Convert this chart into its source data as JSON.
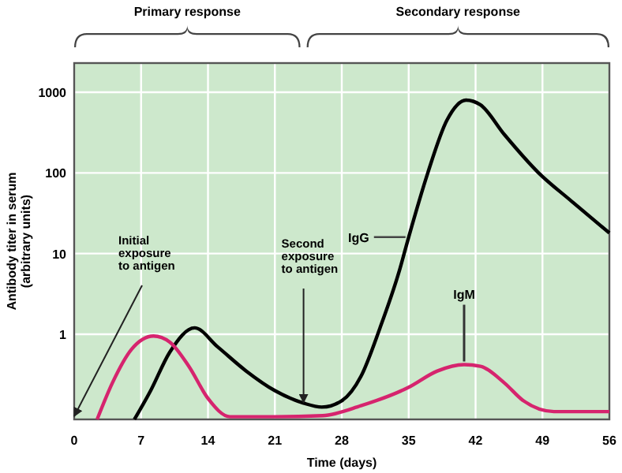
{
  "chart_data": {
    "type": "line",
    "xlabel": "Time (days)",
    "ylabel": "Antibody titer in serum\n(arbitrary units)",
    "log": "y",
    "grid": true,
    "marker": "none",
    "line_style": "solid",
    "xlim": [
      0,
      56
    ],
    "xticks": [
      0,
      7,
      14,
      21,
      28,
      35,
      42,
      49,
      56
    ],
    "ylim": [
      0.088,
      2300
    ],
    "yticks": [
      1,
      10,
      100,
      1000
    ],
    "series": [
      {
        "name": "IgG",
        "color": "#000000",
        "x": [
          6.3,
          8,
          10,
          12.6,
          15,
          18,
          21,
          24,
          25.9,
          28,
          30,
          32,
          34,
          35,
          37,
          39,
          41,
          42.5,
          45,
          48.6,
          52,
          56
        ],
        "values": [
          0.088,
          0.2,
          0.6,
          1.2,
          0.7,
          0.35,
          0.2,
          0.14,
          0.125,
          0.15,
          0.3,
          1.2,
          6,
          16,
          100,
          450,
          800,
          700,
          300,
          100,
          45,
          18
        ]
      },
      {
        "name": "IgM",
        "color": "#d6246e",
        "x": [
          2.4,
          4,
          6,
          8.3,
          10,
          12,
          14,
          16.3,
          21,
          26,
          30,
          35,
          38,
          40.8,
          42.5,
          45,
          47,
          50.2,
          56
        ],
        "values": [
          0.088,
          0.25,
          0.65,
          0.95,
          0.8,
          0.4,
          0.16,
          0.095,
          0.095,
          0.098,
          0.13,
          0.22,
          0.35,
          0.42,
          0.4,
          0.25,
          0.15,
          0.11,
          0.11
        ]
      }
    ],
    "annotations": [
      "Primary response",
      "Secondary response",
      "Initial exposure to antigen",
      {
        "text": "Second exposure to antigen",
        "x": 24,
        "y": 0.13
      }
    ]
  }
}
